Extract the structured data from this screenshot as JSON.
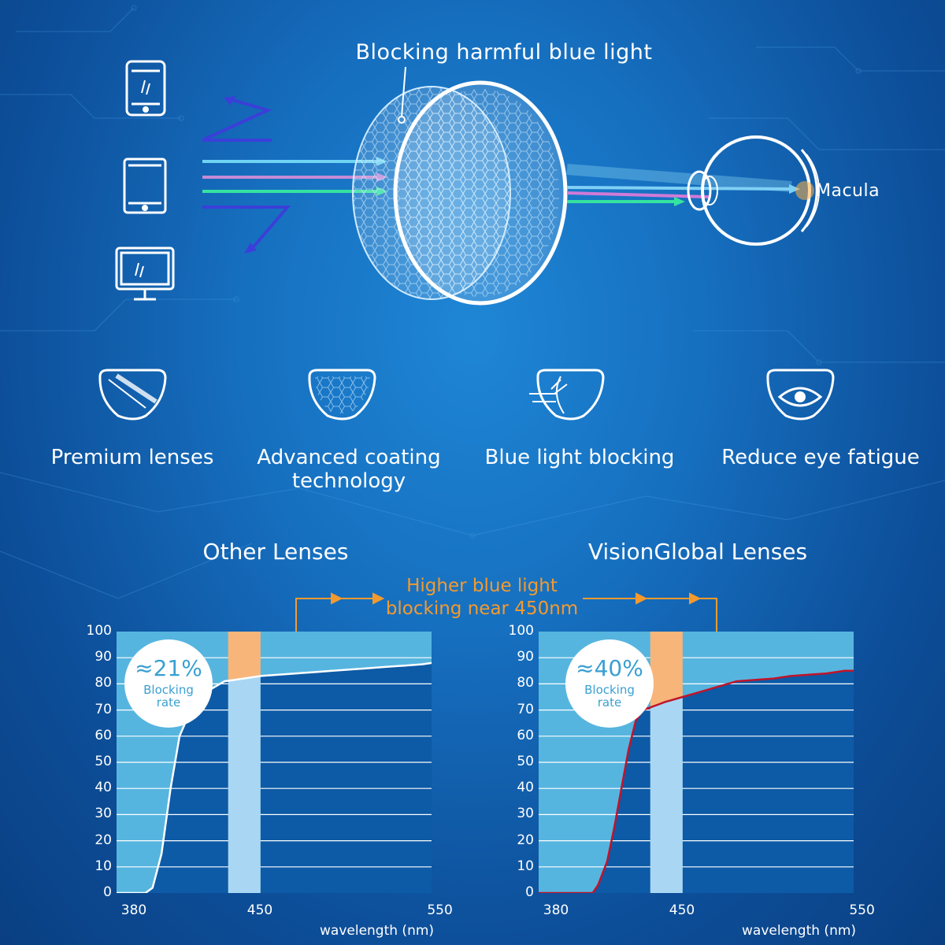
{
  "diagram": {
    "title": "Blocking harmful blue light",
    "macula_label": "Macula",
    "devices": [
      "phone-icon",
      "tablet-icon",
      "monitor-icon"
    ]
  },
  "features": [
    {
      "icon": "premium-lens-icon",
      "label": "Premium lenses"
    },
    {
      "icon": "coating-lens-icon",
      "label": "Advanced coating technology"
    },
    {
      "icon": "blue-light-lens-icon",
      "label": "Blue light blocking"
    },
    {
      "icon": "eye-lens-icon",
      "label": "Reduce eye fatigue"
    }
  ],
  "callout": {
    "text": "Higher blue light blocking near 450nm"
  },
  "colors": {
    "accent": "#f39a2e",
    "chart_fill": "#56b5df",
    "highlight_band": "#a9d7f3",
    "highlight_orange": "#f8b57a",
    "vision_curve": "#c0142a"
  },
  "chart_data": [
    {
      "type": "area",
      "title": "Other Lenses",
      "xlabel": "wavelength (nm)",
      "ylabel": "",
      "ylim": [
        0,
        100
      ],
      "xlim": [
        380,
        555
      ],
      "yticks": [
        "0",
        "10",
        "20",
        "30",
        "40",
        "50",
        "60",
        "70",
        "80",
        "90",
        "100"
      ],
      "xticks": [
        {
          "value": 380,
          "label": "380"
        },
        {
          "value": 450,
          "label": "450"
        },
        {
          "value": 550,
          "label": "550"
        }
      ],
      "highlight_range": [
        442,
        460
      ],
      "badge": {
        "value": "≈21%",
        "caption": "Blocking rate"
      },
      "curve_color": "#ffffff",
      "x": [
        380,
        396,
        400,
        405,
        410,
        415,
        420,
        425,
        430,
        435,
        440,
        450,
        460,
        470,
        480,
        490,
        500,
        510,
        520,
        530,
        540,
        550,
        555
      ],
      "y": [
        0,
        0,
        2,
        15,
        40,
        60,
        68,
        73,
        77,
        79,
        81,
        82,
        83,
        83.5,
        84,
        84.5,
        85,
        85.5,
        86,
        86.5,
        87,
        87.5,
        88
      ]
    },
    {
      "type": "area",
      "title": "VisionGlobal Lenses",
      "xlabel": "wavelength (nm)",
      "ylabel": "",
      "ylim": [
        0,
        100
      ],
      "xlim": [
        380,
        555
      ],
      "yticks": [
        "0",
        "10",
        "20",
        "30",
        "40",
        "50",
        "60",
        "70",
        "80",
        "90",
        "100"
      ],
      "xticks": [
        {
          "value": 380,
          "label": "380"
        },
        {
          "value": 450,
          "label": "450"
        },
        {
          "value": 550,
          "label": "550"
        }
      ],
      "highlight_range": [
        442,
        460
      ],
      "badge": {
        "value": "≈40%",
        "caption": "Blocking rate"
      },
      "curve_color": "#c0142a",
      "x": [
        380,
        410,
        413,
        418,
        422,
        426,
        430,
        434,
        438,
        442,
        446,
        450,
        460,
        470,
        480,
        490,
        500,
        510,
        520,
        530,
        540,
        550,
        555
      ],
      "y": [
        0,
        0,
        3,
        12,
        25,
        40,
        55,
        66,
        70,
        71,
        72,
        73,
        75,
        77,
        79,
        81,
        81.5,
        82,
        83,
        83.5,
        84,
        85,
        85
      ]
    }
  ]
}
